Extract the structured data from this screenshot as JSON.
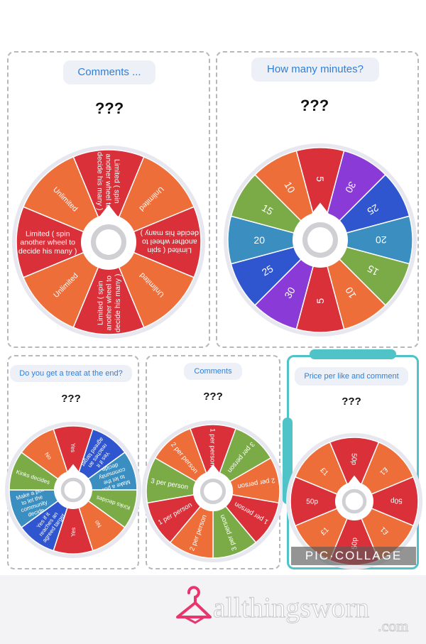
{
  "panels": {
    "comments": {
      "label": "Comments ...",
      "result": "???",
      "segments": [
        {
          "text": "Limited ( spin another wheel to decide his many )",
          "color": "#d9303a"
        },
        {
          "text": "Unlimited",
          "color": "#ee6e3a"
        },
        {
          "text": "Limited ( spin another wheel to decide his many )",
          "color": "#d9303a"
        },
        {
          "text": "Unlimited",
          "color": "#ee6e3a"
        },
        {
          "text": "Limited ( spin another wheel to decide his many )",
          "color": "#d9303a"
        },
        {
          "text": "Unlimited",
          "color": "#ee6e3a"
        },
        {
          "text": "Limited ( spin another wheel to decide his many )",
          "color": "#d9303a"
        },
        {
          "text": "Unlimited",
          "color": "#ee6e3a"
        }
      ]
    },
    "minutes": {
      "label": "How many minutes?",
      "result": "???",
      "segments": [
        {
          "text": "5",
          "color": "#d9303a"
        },
        {
          "text": "30",
          "color": "#8a3ad6"
        },
        {
          "text": "25",
          "color": "#2f55cf"
        },
        {
          "text": "20",
          "color": "#3a8fc0"
        },
        {
          "text": "15",
          "color": "#7aab46"
        },
        {
          "text": "10",
          "color": "#ee6e3a"
        },
        {
          "text": "5",
          "color": "#d9303a"
        },
        {
          "text": "30",
          "color": "#8a3ad6"
        },
        {
          "text": "25",
          "color": "#2f55cf"
        },
        {
          "text": "20",
          "color": "#3a8fc0"
        },
        {
          "text": "15",
          "color": "#7aab46"
        },
        {
          "text": "10",
          "color": "#ee6e3a"
        }
      ]
    },
    "treat": {
      "label": "Do you get a treat  at the end?",
      "result": "???",
      "segments": [
        {
          "text": "Yes",
          "color": "#d9303a"
        },
        {
          "text": "Yes if it reaches an agreed target",
          "color": "#2f55cf"
        },
        {
          "text": "Make a poll to let the community decide",
          "color": "#3a8fc0"
        },
        {
          "text": "Kinks decides",
          "color": "#7aab46"
        },
        {
          "text": "No",
          "color": "#ee6e3a"
        },
        {
          "text": "Yes",
          "color": "#d9303a"
        },
        {
          "text": "Yes if it reaches an agreed target",
          "color": "#2f55cf"
        },
        {
          "text": "Make a poll to let the community decide",
          "color": "#3a8fc0"
        },
        {
          "text": "Kinks decides",
          "color": "#7aab46"
        },
        {
          "text": "No",
          "color": "#ee6e3a"
        }
      ]
    },
    "comments2": {
      "label": "Comments",
      "result": "???",
      "segments": [
        {
          "text": "1 per person",
          "color": "#d9303a"
        },
        {
          "text": "3 per person",
          "color": "#7aab46"
        },
        {
          "text": "2 per person",
          "color": "#ee6e3a"
        },
        {
          "text": "1 per person",
          "color": "#d9303a"
        },
        {
          "text": "3 per person",
          "color": "#7aab46"
        },
        {
          "text": "2 per person",
          "color": "#ee6e3a"
        },
        {
          "text": "1 per person",
          "color": "#d9303a"
        },
        {
          "text": "3 per person",
          "color": "#7aab46"
        },
        {
          "text": "2 per person",
          "color": "#ee6e3a"
        }
      ]
    },
    "price": {
      "label": "Price per like and comment",
      "result": "???",
      "segments": [
        {
          "text": "50p",
          "color": "#d9303a"
        },
        {
          "text": "£1",
          "color": "#ee6e3a"
        },
        {
          "text": "50p",
          "color": "#d9303a"
        },
        {
          "text": "£1",
          "color": "#ee6e3a"
        },
        {
          "text": "50p",
          "color": "#d9303a"
        },
        {
          "text": "£1",
          "color": "#ee6e3a"
        },
        {
          "text": "50p",
          "color": "#d9303a"
        },
        {
          "text": "£1",
          "color": "#ee6e3a"
        }
      ]
    }
  },
  "watermark": "PIC·COLLAGE",
  "footer": {
    "brand": "allthingsworn",
    "domain": ".com",
    "brand_color": "#e8356d"
  }
}
